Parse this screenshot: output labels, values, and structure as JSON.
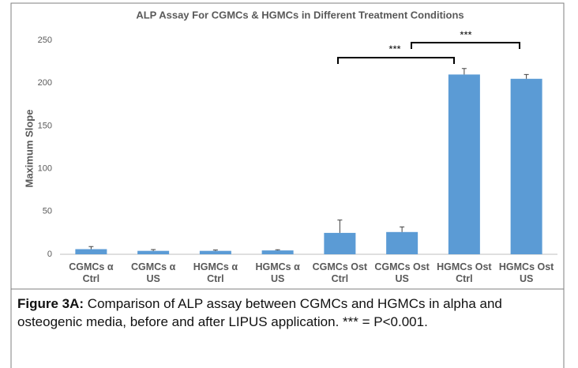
{
  "chart_data": {
    "type": "bar",
    "title": "ALP Assay For CGMCs & HGMCs in Different Treatment Conditions",
    "y_label": "Maximum Slope",
    "categories": [
      "CGMCs α Ctrl",
      "CGMCs α US",
      "HGMCs α Ctrl",
      "HGMCs α US",
      "CGMCs Ost Ctrl",
      "CGMCs Ost US",
      "HGMCs Ost Ctrl",
      "HGMCs Ost US"
    ],
    "values": [
      6,
      4,
      4,
      4.5,
      25,
      26,
      210,
      205
    ],
    "errors": [
      3,
      1.5,
      1,
      0.8,
      15,
      6,
      7,
      5
    ],
    "color": "#5b9bd5",
    "ylim": [
      0,
      250
    ],
    "yticks": [
      0,
      50,
      100,
      150,
      200,
      250
    ],
    "grid": false,
    "annotations": [
      "***",
      "***"
    ]
  },
  "caption": {
    "label": "Figure 3A:",
    "text": "Comparison of ALP assay between CGMCs and HGMCs in alpha and osteogenic media, before and after LIPUS application. *** = P<0.001."
  }
}
